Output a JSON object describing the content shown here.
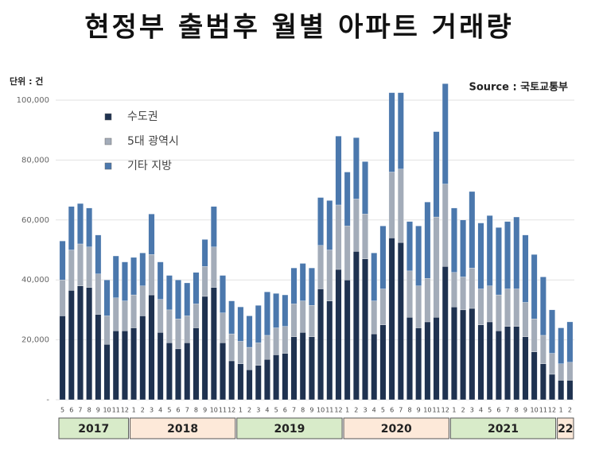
{
  "chart_data": {
    "type": "stacked_bar",
    "title": "현정부 출범후 월별 아파트 거래량",
    "unit_label": "단위 : 건",
    "source": "Source : 국토교통부",
    "categories": [
      "5",
      "6",
      "7",
      "8",
      "9",
      "10",
      "11",
      "12",
      "1",
      "2",
      "3",
      "4",
      "5",
      "6",
      "7",
      "8",
      "9",
      "10",
      "11",
      "12",
      "1",
      "2",
      "3",
      "4",
      "5",
      "6",
      "7",
      "8",
      "9",
      "10",
      "11",
      "12",
      "1",
      "2",
      "3",
      "4",
      "5",
      "6",
      "7",
      "8",
      "9",
      "10",
      "11",
      "12",
      "1",
      "2",
      "3",
      "4",
      "5",
      "6",
      "7",
      "8",
      "9",
      "10",
      "11",
      "12",
      "1",
      "2"
    ],
    "years": [
      "2017",
      "2018",
      "2019",
      "2020",
      "2021",
      "22"
    ],
    "series": [
      {
        "name": "수도권",
        "color": "#1f3250",
        "values": [
          28000,
          36500,
          38000,
          37500,
          28500,
          18500,
          23000,
          23000,
          24000,
          28000,
          35000,
          22500,
          19000,
          17000,
          19000,
          24000,
          34500,
          37500,
          19000,
          13000,
          12000,
          10000,
          11500,
          13500,
          15000,
          15500,
          21000,
          22500,
          21000,
          37000,
          33000,
          43500,
          40000,
          49500,
          47000,
          22000,
          25000,
          54000,
          52500,
          27500,
          24000,
          26000,
          27500,
          44500,
          31000,
          30000,
          30500,
          25000,
          26000,
          23000,
          24500,
          24500,
          21000,
          16000,
          12000,
          8500,
          6500,
          6500
        ]
      },
      {
        "name": "5대 광역시",
        "color": "#a3acb9",
        "values": [
          12000,
          13500,
          14000,
          13500,
          13500,
          9500,
          11000,
          10000,
          11000,
          10000,
          13500,
          11000,
          11000,
          10000,
          9000,
          8000,
          10000,
          13500,
          10000,
          9000,
          7500,
          7500,
          7500,
          8000,
          9000,
          9000,
          11000,
          10500,
          10500,
          14500,
          17000,
          21500,
          18000,
          17500,
          15000,
          11000,
          12000,
          22000,
          24500,
          15500,
          14000,
          14500,
          33500,
          27500,
          11500,
          11000,
          13500,
          12000,
          12000,
          12000,
          12500,
          12500,
          11500,
          11000,
          9500,
          7000,
          5500,
          6000
        ]
      },
      {
        "name": "기타 지방",
        "color": "#4b78ad",
        "values": [
          13000,
          14500,
          13500,
          13000,
          13000,
          12000,
          14000,
          13000,
          12500,
          11000,
          13500,
          12500,
          11500,
          13000,
          11000,
          10500,
          9000,
          13500,
          12500,
          11000,
          11500,
          10500,
          12500,
          14500,
          11500,
          10500,
          12000,
          12500,
          12500,
          16000,
          16500,
          23000,
          18000,
          20500,
          17500,
          16000,
          21000,
          26500,
          25500,
          16500,
          20000,
          25500,
          28500,
          33500,
          21500,
          19000,
          25500,
          22000,
          23500,
          22500,
          22500,
          24000,
          22500,
          21500,
          19500,
          14500,
          12000,
          13500
        ]
      }
    ],
    "ylim": [
      0,
      105000
    ],
    "yticks": [
      {
        "value": 0,
        "label": "-"
      },
      {
        "value": 20000,
        "label": "20,000"
      },
      {
        "value": 40000,
        "label": "40,000"
      },
      {
        "value": 60000,
        "label": "60,000"
      },
      {
        "value": 80000,
        "label": "80,000"
      },
      {
        "value": 100000,
        "label": "100,000"
      }
    ],
    "grid": true
  }
}
